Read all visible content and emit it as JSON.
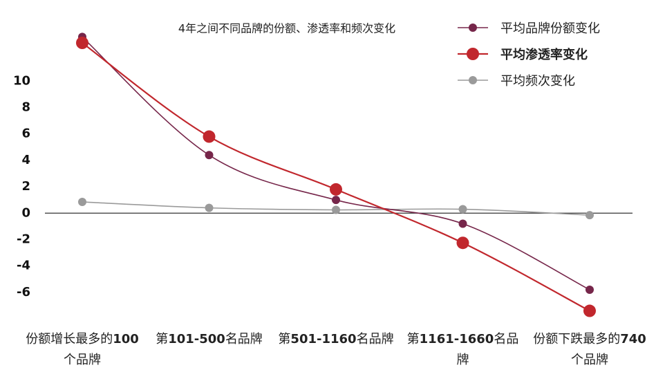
{
  "chart_data": {
    "type": "line",
    "title": "4年之间不同品牌的份额、渗透率和频次变化",
    "categories": [
      "份额增长最多的100个品牌",
      "第101-500名品牌",
      "第501-1160名品牌",
      "第1161-1660名品牌",
      "份额下跌最多的740个品牌"
    ],
    "series": [
      {
        "name": "平均品牌份额变化",
        "color": "#76264a",
        "values": [
          13.35,
          4.4,
          1.0,
          -0.8,
          -5.8
        ]
      },
      {
        "name": "平均渗透率变化",
        "color": "#c1272d",
        "values": [
          12.9,
          5.8,
          1.8,
          -2.25,
          -7.4
        ]
      },
      {
        "name": "平均频次变化",
        "color": "#9a9a9a",
        "values": [
          0.85,
          0.4,
          0.25,
          0.3,
          -0.15
        ]
      }
    ],
    "ylim": [
      -8,
      14
    ],
    "yticks": [
      -6,
      -4,
      -2,
      0,
      2,
      4,
      6,
      8,
      10
    ],
    "legend": "top-right"
  }
}
